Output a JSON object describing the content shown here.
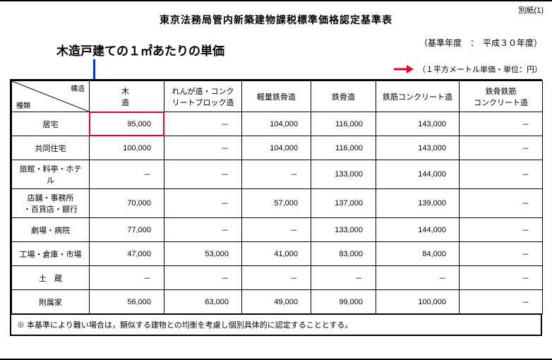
{
  "page_label": "別紙(1)",
  "title": "東京法務局管内新築建物課税標準価格認定基準表",
  "annotation": "木造戸建ての１㎡あたりの単価",
  "base_year": "（基準年度　：　平成３０年度）",
  "unit_note": "（１平方メートル単価・単位：円）",
  "colors": {
    "highlight": "#e4002b",
    "pointer": "#0033cc",
    "arrow": "#e4002b",
    "border": "#000000",
    "bg": "#ffffff"
  },
  "table": {
    "corner_top": "構造",
    "corner_bottom": "種類",
    "columns": [
      "木　　造",
      "れんが造・コンクリートブロック造",
      "軽量鉄骨造",
      "鉄骨造",
      "鉄筋コンクリート造",
      "鉄骨鉄筋\nコンクリート造"
    ],
    "col_widths": [
      "110",
      "106",
      "110",
      "98",
      "92",
      "118",
      "118"
    ],
    "rows": [
      {
        "label": "居宅",
        "cells": [
          "95,000",
          "－",
          "104,000",
          "116,000",
          "143,000",
          "－"
        ]
      },
      {
        "label": "共同住宅",
        "cells": [
          "100,000",
          "－",
          "104,000",
          "116,000",
          "143,000",
          "－"
        ]
      },
      {
        "label": "旅館・料亭・ホテル",
        "cells": [
          "－",
          "－",
          "－",
          "133,000",
          "144,000",
          "－"
        ]
      },
      {
        "label": "店舗・事務所\n・百貨店・銀行",
        "cells": [
          "70,000",
          "－",
          "57,000",
          "137,000",
          "139,000",
          "－"
        ]
      },
      {
        "label": "劇場・病院",
        "cells": [
          "77,000",
          "－",
          "－",
          "133,000",
          "144,000",
          "－"
        ]
      },
      {
        "label": "工場・倉庫・市場",
        "cells": [
          "47,000",
          "53,000",
          "41,000",
          "83,000",
          "84,000",
          "－"
        ]
      },
      {
        "label": "土　蔵",
        "cells": [
          "－",
          "－",
          "－",
          "－",
          "－",
          "－"
        ]
      },
      {
        "label": "附属家",
        "cells": [
          "56,000",
          "63,000",
          "49,000",
          "99,000",
          "100,000",
          "－"
        ]
      }
    ],
    "highlight": {
      "row": 0,
      "col": 0
    }
  },
  "footnote": "※ 本基準により難い場合は，類似する建物との均衡を考慮し個別具体的に認定することとする。"
}
